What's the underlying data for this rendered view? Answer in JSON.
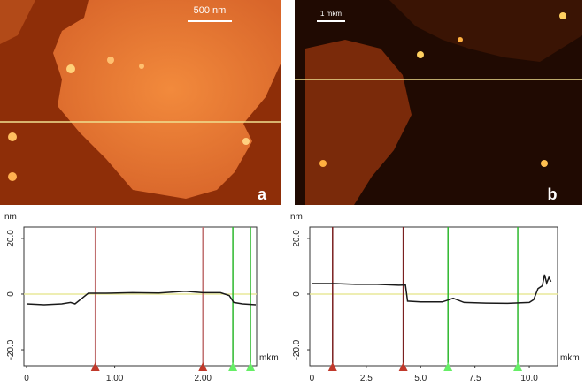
{
  "panels": {
    "a": {
      "scale_bar": "500 nm",
      "label": "a"
    },
    "b": {
      "scale_bar": "1 mkm",
      "label": "b"
    }
  },
  "chart_data": [
    {
      "type": "line",
      "y_label": "nm",
      "x_label": "mkm",
      "color": "#1a1a1a",
      "zero_line_color": "#e8e89a",
      "x": [
        0,
        0.2,
        0.4,
        0.5,
        0.55,
        0.65,
        0.7,
        0.9,
        1.2,
        1.5,
        1.8,
        2.0,
        2.2,
        2.3,
        2.35,
        2.45,
        2.6
      ],
      "values": [
        -3.5,
        -3.8,
        -3.5,
        -3,
        -3.5,
        -1,
        0.3,
        0.3,
        0.5,
        0.4,
        1,
        0.5,
        0.5,
        -0.5,
        -3,
        -3.5,
        -3.8
      ],
      "xlim": [
        -0.03,
        2.61
      ],
      "ylim": [
        -25.7,
        24.1
      ],
      "xticks": [
        0,
        {
          "value": 1,
          "label": "1.00"
        },
        {
          "value": 2,
          "label": "2.00"
        }
      ],
      "yticks": [
        {
          "value": 20,
          "label": "20.0"
        },
        0,
        {
          "value": -20,
          "label": "-20.0"
        }
      ],
      "cursors": [
        {
          "x": 0.78,
          "color": "#c07070",
          "marker": "#c0392b"
        },
        {
          "x": 2.0,
          "color": "#c07070",
          "marker": "#c0392b"
        },
        {
          "x": 2.34,
          "color": "#2db82d",
          "marker": "#66ee66"
        },
        {
          "x": 2.54,
          "color": "#2db82d",
          "marker": "#66ee66"
        }
      ]
    },
    {
      "type": "line",
      "y_label": "nm",
      "x_label": "mkm",
      "color": "#1a1a1a",
      "zero_line_color": "#e8e89a",
      "x": [
        0,
        1,
        2,
        3,
        4,
        4.3,
        4.4,
        5,
        6,
        6.5,
        7,
        8,
        9,
        10,
        10.2,
        10.4,
        10.6,
        10.7,
        10.8,
        10.9,
        11
      ],
      "values": [
        3.8,
        3.8,
        3.5,
        3.5,
        3.2,
        3.3,
        -2.5,
        -2.8,
        -2.8,
        -1.5,
        -3,
        -3.2,
        -3.3,
        -3,
        -2,
        2,
        3,
        7,
        4,
        6,
        4.5
      ],
      "xlim": [
        -0.1,
        11.3
      ],
      "ylim": [
        -25.7,
        24.1
      ],
      "xticks": [
        0,
        2.5,
        {
          "value": 5,
          "label": "5.0"
        },
        7.5,
        {
          "value": 10,
          "label": "10.0"
        }
      ],
      "yticks": [
        {
          "value": 20,
          "label": "20.0"
        },
        0,
        {
          "value": -20,
          "label": "-20.0"
        }
      ],
      "cursors": [
        {
          "x": 0.95,
          "color": "#7a2020",
          "marker": "#c0392b"
        },
        {
          "x": 4.2,
          "color": "#7a2020",
          "marker": "#c0392b"
        },
        {
          "x": 6.26,
          "color": "#2db82d",
          "marker": "#66ee66"
        },
        {
          "x": 9.47,
          "color": "#2db82d",
          "marker": "#66ee66"
        }
      ]
    }
  ]
}
